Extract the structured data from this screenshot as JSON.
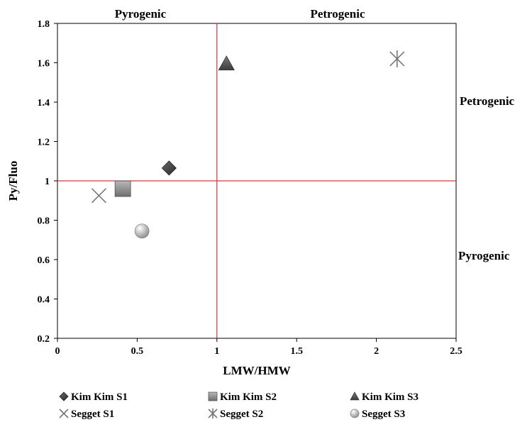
{
  "chart_data": {
    "type": "scatter",
    "title": "",
    "xlabel": "LMW/HMW",
    "ylabel": "Py/Fluo",
    "xlim": [
      0,
      2.5
    ],
    "ylim": [
      0.2,
      1.8
    ],
    "x_ticks": [
      0,
      0.5,
      1,
      1.5,
      2,
      2.5
    ],
    "x_tick_labels": [
      "0",
      "0.5",
      "1",
      "1.5",
      "2",
      "2.5"
    ],
    "y_ticks": [
      0.2,
      0.4,
      0.6,
      0.8,
      1,
      1.2,
      1.4,
      1.6,
      1.8
    ],
    "y_tick_labels": [
      "0.2",
      "0.4",
      "0.6",
      "0.8",
      "1",
      "1.2",
      "1.4",
      "1.6",
      "1.8"
    ],
    "grid": false,
    "legend_position": "bottom",
    "reference_lines": [
      {
        "axis": "x",
        "value": 1,
        "color": "#e0303a"
      },
      {
        "axis": "y",
        "value": 1,
        "color": "#e0303a"
      }
    ],
    "region_labels": {
      "top_left": "Pyrogenic",
      "top_right": "Petrogenic",
      "right_upper": "Petrogenic",
      "right_lower": "Pyrogenic"
    },
    "series": [
      {
        "name": "Kim Kim S1",
        "marker": "diamond",
        "color": "#404040",
        "x": [
          0.7
        ],
        "y": [
          1.065
        ]
      },
      {
        "name": "Kim Kim S2",
        "marker": "square",
        "color": "#8c8c8c",
        "x": [
          0.41
        ],
        "y": [
          0.96
        ]
      },
      {
        "name": "Kim Kim S3",
        "marker": "triangle",
        "color": "#5a5a5a",
        "x": [
          1.06
        ],
        "y": [
          1.595
        ]
      },
      {
        "name": "Segget S1",
        "marker": "x",
        "color": "#7a7a7a",
        "x": [
          0.26
        ],
        "y": [
          0.925
        ]
      },
      {
        "name": "Segget S2",
        "marker": "asterisk",
        "color": "#7a7a7a",
        "x": [
          2.13
        ],
        "y": [
          1.62
        ]
      },
      {
        "name": "Segget S3",
        "marker": "circle",
        "color": "#b0b0b0",
        "x": [
          0.53
        ],
        "y": [
          0.745
        ]
      }
    ]
  }
}
